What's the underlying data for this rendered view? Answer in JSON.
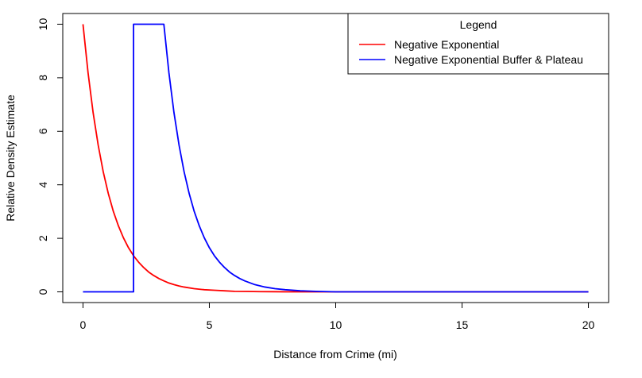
{
  "chart_data": {
    "type": "line",
    "xlabel": "Distance from Crime (mi)",
    "ylabel": "Relative Density Estimate",
    "xlim": [
      -0.8,
      20.8
    ],
    "ylim": [
      -0.4,
      10.4
    ],
    "x_ticks": [
      0,
      5,
      10,
      15,
      20
    ],
    "y_ticks": [
      0,
      2,
      4,
      6,
      8,
      10
    ],
    "grid": false,
    "legend": {
      "title": "Legend",
      "placement": "top-right",
      "entries": [
        "Negative Exponential",
        "Negative Exponential Buffer & Plateau"
      ]
    },
    "series": [
      {
        "name": "Negative Exponential",
        "color": "#ff0000",
        "x": [
          0,
          0.2,
          0.4,
          0.6,
          0.8,
          1.0,
          1.2,
          1.4,
          1.6,
          1.8,
          2.0,
          2.2,
          2.4,
          2.6,
          2.8,
          3.0,
          3.2,
          3.4,
          3.6,
          3.8,
          4.0,
          4.4,
          4.8,
          5.2,
          5.6,
          6.0,
          6.5,
          7.0,
          7.5,
          8.0,
          9.0,
          10.0,
          12.0,
          14.0,
          16.0,
          18.0,
          20.0
        ],
        "y": [
          10.0,
          8.19,
          6.7,
          5.49,
          4.49,
          3.68,
          3.01,
          2.47,
          2.02,
          1.65,
          1.35,
          1.11,
          0.91,
          0.74,
          0.61,
          0.5,
          0.41,
          0.33,
          0.27,
          0.22,
          0.18,
          0.12,
          0.08,
          0.06,
          0.04,
          0.02,
          0.015,
          0.009,
          0.006,
          0.003,
          0.001,
          0.0,
          0.0,
          0.0,
          0.0,
          0.0,
          0.0
        ]
      },
      {
        "name": "Negative Exponential Buffer & Plateau",
        "color": "#0000ff",
        "x": [
          0,
          2.0,
          2.0,
          3.2,
          3.4,
          3.6,
          3.8,
          4.0,
          4.2,
          4.4,
          4.6,
          4.8,
          5.0,
          5.2,
          5.4,
          5.6,
          5.8,
          6.0,
          6.2,
          6.4,
          6.8,
          7.2,
          7.6,
          8.0,
          8.6,
          9.2,
          10.0,
          12.0,
          14.0,
          16.0,
          18.0,
          20.0
        ],
        "y": [
          0.0,
          0.0,
          10.0,
          10.0,
          8.19,
          6.7,
          5.49,
          4.49,
          3.68,
          3.01,
          2.47,
          2.02,
          1.65,
          1.35,
          1.11,
          0.91,
          0.74,
          0.61,
          0.5,
          0.41,
          0.27,
          0.18,
          0.12,
          0.08,
          0.04,
          0.02,
          0.0,
          0.0,
          0.0,
          0.0,
          0.0,
          0.0
        ]
      }
    ]
  }
}
